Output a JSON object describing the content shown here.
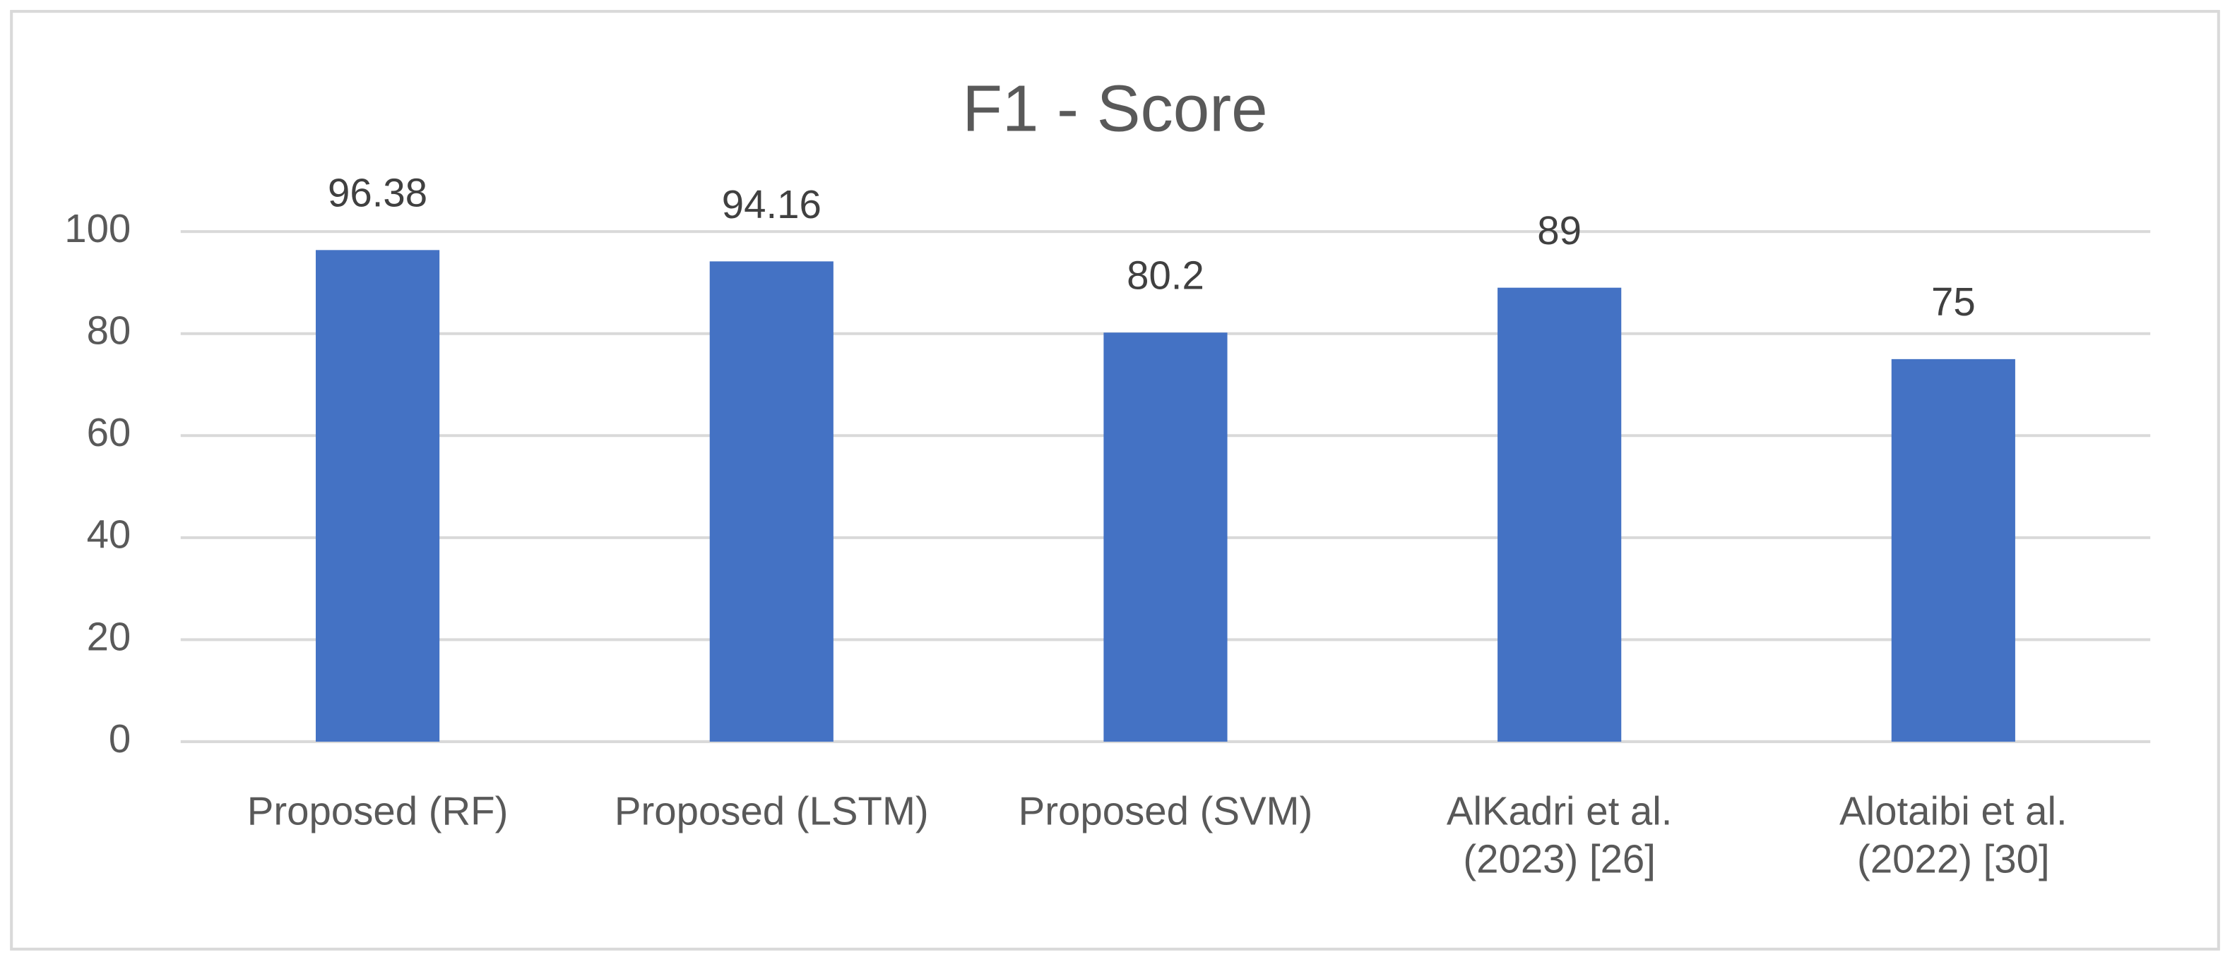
{
  "chart_data": {
    "type": "bar",
    "title": "F1 - Score",
    "categories": [
      "Proposed (RF)",
      "Proposed (LSTM)",
      "Proposed (SVM)",
      "AlKadri et al.\n(2023) [26]",
      "Alotaibi et al.\n(2022) [30]"
    ],
    "values": [
      96.38,
      94.16,
      80.2,
      89,
      75
    ],
    "color": "#4472c4",
    "ylim": [
      0,
      100
    ],
    "yticks": [
      0,
      20,
      40,
      60,
      80,
      100
    ],
    "grid": true
  }
}
